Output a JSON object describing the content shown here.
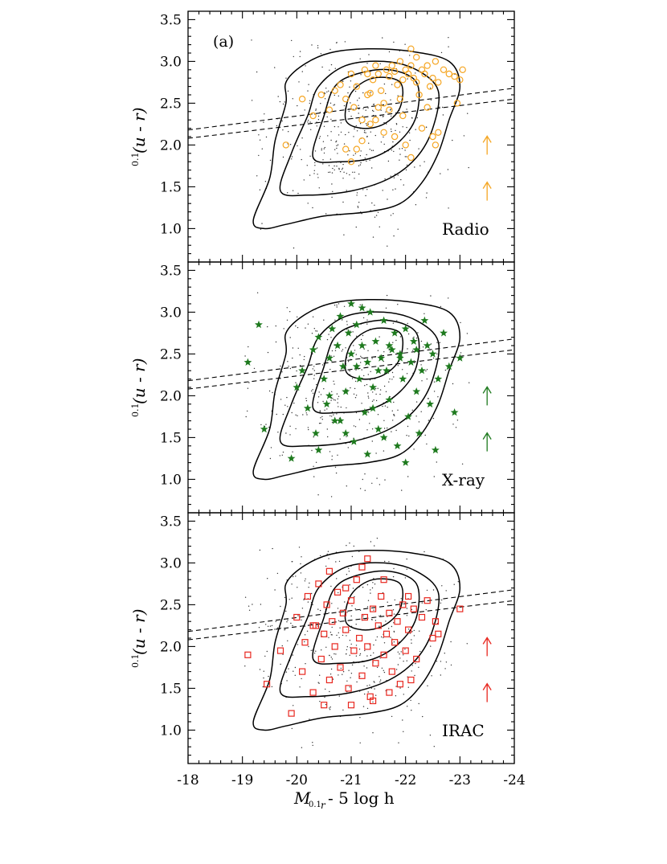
{
  "figure": {
    "xaxis_label_main": "M",
    "xaxis_label_sub": "0.1",
    "xaxis_label_subsub": "r",
    "xaxis_label_rest": " - 5 log h",
    "yaxis_label_sup": "0.1",
    "yaxis_label_main": "(u - r)",
    "panel_tag": "(a)"
  },
  "chart_data": [
    {
      "type": "scatter",
      "panel_label": "Radio",
      "marker": "circle",
      "color": "#f5a623",
      "xlim": [
        -18,
        -24
      ],
      "ylim": [
        0.6,
        3.6
      ],
      "x_ticks": [
        -18,
        -19,
        -20,
        -21,
        -22,
        -23,
        -24
      ],
      "x_ticklabels": [
        "-18",
        "-19",
        "-20",
        "-21",
        "-22",
        "-23",
        "-24"
      ],
      "y_ticks": [
        1.0,
        1.5,
        2.0,
        2.5,
        3.0,
        3.5
      ],
      "y_ticklabels": [
        "1.0",
        "1.5",
        "2.0",
        "2.5",
        "3.0",
        "3.5"
      ],
      "divider_lines": [
        {
          "x": [
            -18,
            -24
          ],
          "y": [
            2.18,
            2.68
          ]
        },
        {
          "x": [
            -18,
            -24
          ],
          "y": [
            2.08,
            2.55
          ]
        }
      ],
      "upper_limit_arrows": [
        {
          "x": -23.5,
          "y": 2.0
        },
        {
          "x": -23.5,
          "y": 1.45
        }
      ],
      "points": [
        [
          -19.8,
          2.0
        ],
        [
          -20.1,
          2.55
        ],
        [
          -20.3,
          2.35
        ],
        [
          -20.45,
          2.6
        ],
        [
          -20.6,
          2.42
        ],
        [
          -20.7,
          2.65
        ],
        [
          -20.8,
          2.72
        ],
        [
          -20.9,
          2.55
        ],
        [
          -21.0,
          2.85
        ],
        [
          -21.05,
          2.45
        ],
        [
          -21.1,
          2.7
        ],
        [
          -21.2,
          2.3
        ],
        [
          -21.25,
          2.9
        ],
        [
          -21.3,
          2.6
        ],
        [
          -21.35,
          2.25
        ],
        [
          -21.4,
          2.78
        ],
        [
          -21.45,
          2.95
        ],
        [
          -21.5,
          2.85
        ],
        [
          -21.55,
          2.65
        ],
        [
          -21.6,
          2.5
        ],
        [
          -21.65,
          2.9
        ],
        [
          -21.7,
          2.82
        ],
        [
          -21.75,
          2.95
        ],
        [
          -21.8,
          2.88
        ],
        [
          -21.85,
          2.72
        ],
        [
          -21.9,
          3.0
        ],
        [
          -21.95,
          2.78
        ],
        [
          -22.0,
          2.9
        ],
        [
          -22.05,
          2.85
        ],
        [
          -22.1,
          2.95
        ],
        [
          -22.15,
          2.8
        ],
        [
          -22.2,
          2.75
        ],
        [
          -22.25,
          2.6
        ],
        [
          -22.3,
          2.9
        ],
        [
          -22.35,
          2.85
        ],
        [
          -22.4,
          2.95
        ],
        [
          -22.45,
          2.7
        ],
        [
          -22.5,
          2.8
        ],
        [
          -22.55,
          3.0
        ],
        [
          -22.6,
          2.75
        ],
        [
          -22.7,
          2.9
        ],
        [
          -22.8,
          2.85
        ],
        [
          -22.9,
          2.82
        ],
        [
          -23.0,
          2.78
        ],
        [
          -22.95,
          2.5
        ],
        [
          -23.05,
          2.9
        ],
        [
          -21.2,
          2.05
        ],
        [
          -21.1,
          1.95
        ],
        [
          -21.0,
          1.8
        ],
        [
          -20.9,
          1.95
        ],
        [
          -21.6,
          2.15
        ],
        [
          -21.8,
          2.1
        ],
        [
          -22.0,
          2.0
        ],
        [
          -22.1,
          1.85
        ],
        [
          -22.3,
          2.2
        ],
        [
          -22.5,
          2.1
        ],
        [
          -22.6,
          2.15
        ],
        [
          -22.55,
          2.0
        ],
        [
          -21.9,
          2.55
        ],
        [
          -21.5,
          2.45
        ],
        [
          -21.35,
          2.62
        ],
        [
          -21.45,
          2.3
        ],
        [
          -22.2,
          3.05
        ],
        [
          -22.1,
          3.15
        ],
        [
          -21.7,
          2.42
        ],
        [
          -21.95,
          2.35
        ],
        [
          -22.4,
          2.45
        ],
        [
          -21.3,
          2.85
        ]
      ]
    },
    {
      "type": "scatter",
      "panel_label": "X-ray",
      "marker": "star",
      "color": "#1e7a1e",
      "xlim": [
        -18,
        -24
      ],
      "ylim": [
        0.6,
        3.6
      ],
      "x_ticks": [
        -18,
        -19,
        -20,
        -21,
        -22,
        -23,
        -24
      ],
      "x_ticklabels": [
        "-18",
        "-19",
        "-20",
        "-21",
        "-22",
        "-23",
        "-24"
      ],
      "y_ticks": [
        1.0,
        1.5,
        2.0,
        2.5,
        3.0,
        3.5
      ],
      "y_ticklabels": [
        "1.0",
        "1.5",
        "2.0",
        "2.5",
        "3.0",
        "3.5"
      ],
      "divider_lines": [
        {
          "x": [
            -18,
            -24
          ],
          "y": [
            2.18,
            2.68
          ]
        },
        {
          "x": [
            -18,
            -24
          ],
          "y": [
            2.08,
            2.55
          ]
        }
      ],
      "upper_limit_arrows": [
        {
          "x": -23.5,
          "y": 2.0
        },
        {
          "x": -23.5,
          "y": 1.45
        }
      ],
      "points": [
        [
          -19.3,
          2.85
        ],
        [
          -19.1,
          2.4
        ],
        [
          -19.4,
          1.6
        ],
        [
          -19.9,
          1.25
        ],
        [
          -20.0,
          2.1
        ],
        [
          -20.1,
          2.3
        ],
        [
          -20.2,
          1.85
        ],
        [
          -20.3,
          2.55
        ],
        [
          -20.35,
          1.55
        ],
        [
          -20.4,
          2.7
        ],
        [
          -20.5,
          2.2
        ],
        [
          -20.55,
          1.9
        ],
        [
          -20.6,
          2.45
        ],
        [
          -20.65,
          2.8
        ],
        [
          -20.7,
          1.7
        ],
        [
          -20.75,
          2.6
        ],
        [
          -20.8,
          2.95
        ],
        [
          -20.85,
          2.35
        ],
        [
          -20.9,
          2.05
        ],
        [
          -20.95,
          2.75
        ],
        [
          -21.0,
          2.5
        ],
        [
          -21.05,
          1.45
        ],
        [
          -21.1,
          2.85
        ],
        [
          -21.15,
          2.2
        ],
        [
          -21.2,
          2.6
        ],
        [
          -21.25,
          1.8
        ],
        [
          -21.3,
          2.4
        ],
        [
          -21.35,
          3.0
        ],
        [
          -21.4,
          2.1
        ],
        [
          -21.45,
          2.65
        ],
        [
          -21.5,
          1.6
        ],
        [
          -21.55,
          2.45
        ],
        [
          -21.6,
          2.9
        ],
        [
          -21.65,
          2.3
        ],
        [
          -21.7,
          1.95
        ],
        [
          -21.75,
          2.55
        ],
        [
          -21.8,
          2.75
        ],
        [
          -21.85,
          1.4
        ],
        [
          -21.9,
          2.5
        ],
        [
          -21.95,
          2.2
        ],
        [
          -22.0,
          2.8
        ],
        [
          -22.05,
          1.75
        ],
        [
          -22.1,
          2.4
        ],
        [
          -22.15,
          2.65
        ],
        [
          -22.2,
          2.05
        ],
        [
          -22.25,
          1.55
        ],
        [
          -22.3,
          2.3
        ],
        [
          -22.35,
          2.9
        ],
        [
          -22.4,
          2.6
        ],
        [
          -22.45,
          1.9
        ],
        [
          -22.5,
          2.5
        ],
        [
          -22.55,
          1.35
        ],
        [
          -22.6,
          2.2
        ],
        [
          -22.7,
          2.75
        ],
        [
          -22.8,
          2.35
        ],
        [
          -23.0,
          2.45
        ],
        [
          -22.9,
          1.8
        ],
        [
          -21.2,
          3.05
        ],
        [
          -21.0,
          3.1
        ],
        [
          -20.4,
          1.35
        ],
        [
          -20.9,
          1.55
        ],
        [
          -21.3,
          1.3
        ],
        [
          -21.6,
          1.5
        ],
        [
          -22.0,
          1.2
        ],
        [
          -21.7,
          2.6
        ],
        [
          -21.5,
          2.3
        ],
        [
          -21.1,
          2.35
        ],
        [
          -20.6,
          2.0
        ],
        [
          -21.9,
          2.45
        ],
        [
          -22.2,
          2.55
        ],
        [
          -21.4,
          1.85
        ],
        [
          -20.8,
          1.7
        ]
      ]
    },
    {
      "type": "scatter",
      "panel_label": "IRAC",
      "marker": "square",
      "color": "#e8271f",
      "xlim": [
        -18,
        -24
      ],
      "ylim": [
        0.6,
        3.6
      ],
      "x_ticks": [
        -18,
        -19,
        -20,
        -21,
        -22,
        -23,
        -24
      ],
      "x_ticklabels": [
        "-18",
        "-19",
        "-20",
        "-21",
        "-22",
        "-23",
        "-24"
      ],
      "y_ticks": [
        1.0,
        1.5,
        2.0,
        2.5,
        3.0,
        3.5
      ],
      "y_ticklabels": [
        "1.0",
        "1.5",
        "2.0",
        "2.5",
        "3.0",
        "3.5"
      ],
      "divider_lines": [
        {
          "x": [
            -18,
            -24
          ],
          "y": [
            2.18,
            2.68
          ]
        },
        {
          "x": [
            -18,
            -24
          ],
          "y": [
            2.08,
            2.55
          ]
        }
      ],
      "upper_limit_arrows": [
        {
          "x": -23.5,
          "y": 2.0
        },
        {
          "x": -23.5,
          "y": 1.45
        }
      ],
      "points": [
        [
          -19.1,
          1.9
        ],
        [
          -19.45,
          1.55
        ],
        [
          -19.7,
          1.95
        ],
        [
          -19.9,
          1.2
        ],
        [
          -20.0,
          2.35
        ],
        [
          -20.1,
          1.7
        ],
        [
          -20.15,
          2.05
        ],
        [
          -20.2,
          2.6
        ],
        [
          -20.3,
          1.45
        ],
        [
          -20.35,
          2.25
        ],
        [
          -20.4,
          2.75
        ],
        [
          -20.45,
          1.85
        ],
        [
          -20.5,
          2.15
        ],
        [
          -20.55,
          2.5
        ],
        [
          -20.6,
          1.6
        ],
        [
          -20.65,
          2.3
        ],
        [
          -20.7,
          2.0
        ],
        [
          -20.75,
          2.65
        ],
        [
          -20.8,
          1.75
        ],
        [
          -20.85,
          2.4
        ],
        [
          -20.9,
          2.2
        ],
        [
          -20.95,
          1.5
        ],
        [
          -21.0,
          2.55
        ],
        [
          -21.05,
          1.95
        ],
        [
          -21.1,
          2.8
        ],
        [
          -21.15,
          2.1
        ],
        [
          -21.2,
          1.65
        ],
        [
          -21.25,
          2.35
        ],
        [
          -21.3,
          2.0
        ],
        [
          -21.35,
          1.4
        ],
        [
          -21.4,
          2.45
        ],
        [
          -21.45,
          1.8
        ],
        [
          -21.5,
          2.25
        ],
        [
          -21.55,
          2.6
        ],
        [
          -21.6,
          1.9
        ],
        [
          -21.65,
          2.15
        ],
        [
          -21.7,
          2.4
        ],
        [
          -21.75,
          1.7
        ],
        [
          -21.8,
          2.05
        ],
        [
          -21.85,
          2.3
        ],
        [
          -21.9,
          1.55
        ],
        [
          -21.95,
          2.5
        ],
        [
          -22.0,
          1.95
        ],
        [
          -22.05,
          2.2
        ],
        [
          -22.1,
          1.6
        ],
        [
          -22.15,
          2.45
        ],
        [
          -22.2,
          1.85
        ],
        [
          -22.3,
          2.35
        ],
        [
          -22.4,
          2.55
        ],
        [
          -22.5,
          2.1
        ],
        [
          -22.6,
          2.15
        ],
        [
          -22.55,
          2.3
        ],
        [
          -21.2,
          2.95
        ],
        [
          -21.3,
          3.05
        ],
        [
          -20.6,
          2.9
        ],
        [
          -20.9,
          2.7
        ],
        [
          -21.6,
          2.8
        ],
        [
          -20.3,
          2.25
        ],
        [
          -20.5,
          1.3
        ],
        [
          -21.0,
          1.3
        ],
        [
          -21.4,
          1.35
        ],
        [
          -21.7,
          1.45
        ],
        [
          -22.05,
          2.6
        ],
        [
          -23.0,
          2.45
        ]
      ]
    }
  ]
}
